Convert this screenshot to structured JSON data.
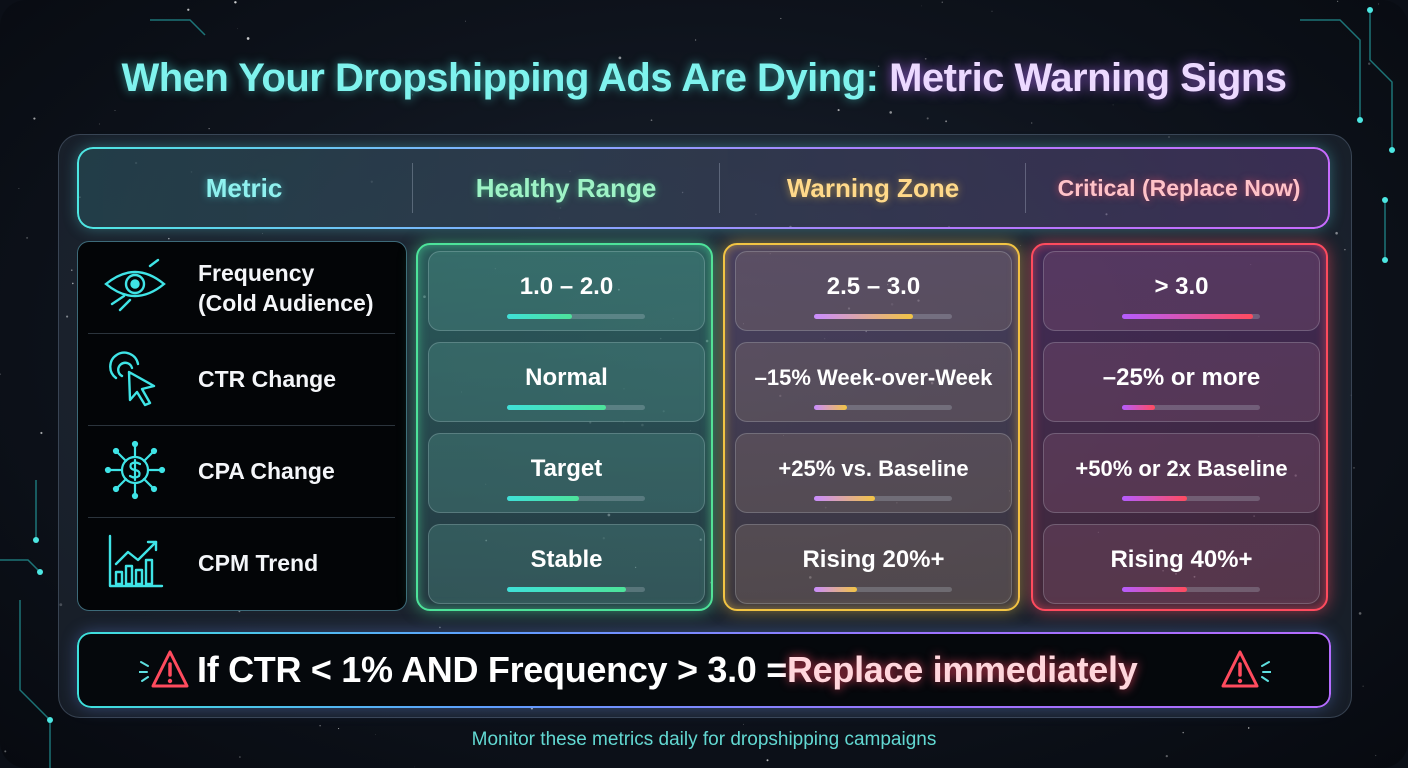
{
  "title": {
    "part1": "When Your Dropshipping Ads Are Dying: ",
    "part2": "Metric Warning Signs"
  },
  "header": {
    "metric": "Metric",
    "healthy": "Healthy Range",
    "warning": "Warning Zone",
    "critical": "Critical (Replace Now)"
  },
  "metrics": [
    {
      "icon": "eye-icon",
      "label_line1": "Frequency",
      "label_line2": "(Cold Audience)"
    },
    {
      "icon": "cursor-click-icon",
      "label": "CTR Change"
    },
    {
      "icon": "dollar-circuit-icon",
      "label": "CPA Change"
    },
    {
      "icon": "trend-chart-icon",
      "label": "CPM Trend"
    }
  ],
  "healthy": [
    {
      "value": "1.0 – 2.0",
      "level": 0.47
    },
    {
      "value": "Normal",
      "level": 0.72
    },
    {
      "value": "Target",
      "level": 0.52
    },
    {
      "value": "Stable",
      "level": 0.86
    }
  ],
  "warning": [
    {
      "value": "2.5 – 3.0",
      "level": 0.72
    },
    {
      "value": "–15% Week-over-Week",
      "level": 0.24
    },
    {
      "value": "+25% vs. Baseline",
      "level": 0.44
    },
    {
      "value": "Rising 20%+",
      "level": 0.31
    }
  ],
  "critical": [
    {
      "value": "> 3.0",
      "level": 0.95
    },
    {
      "value": "–25% or more",
      "level": 0.24
    },
    {
      "value": "+50% or 2x Baseline",
      "level": 0.47
    },
    {
      "value": "Rising 40%+",
      "level": 0.47
    }
  ],
  "alert": {
    "part1": "If CTR < 1% AND Frequency > 3.0 = ",
    "part2": "Replace immediately"
  },
  "footer": "Monitor these metrics daily for dropshipping campaigns",
  "colors": {
    "healthy": "#4de39a",
    "warning": "#f2c443",
    "critical": "#ff4b5e",
    "accent": "#4de7e2"
  }
}
